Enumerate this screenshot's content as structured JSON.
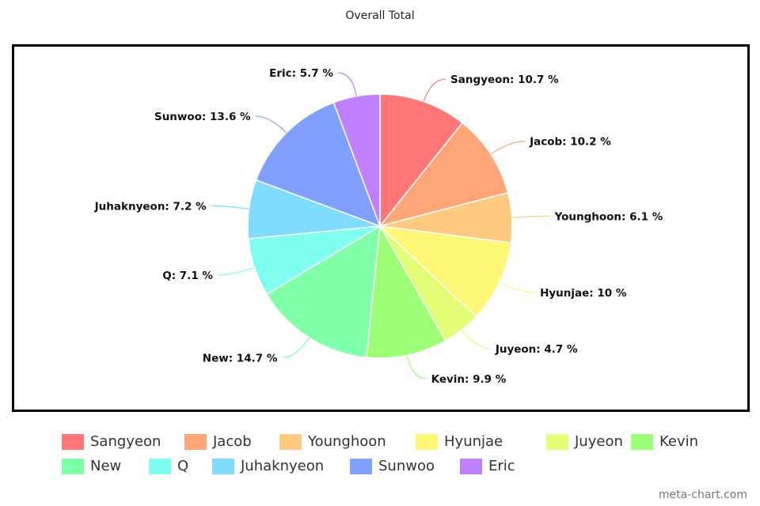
{
  "chart_data": {
    "type": "pie",
    "title": "Overall Total",
    "slices": [
      {
        "label": "Sangyeon",
        "value": 10.7,
        "color": "#ff7777"
      },
      {
        "label": "Jacob",
        "value": 10.2,
        "color": "#ffa577"
      },
      {
        "label": "Younghoon",
        "value": 6.1,
        "color": "#ffc980"
      },
      {
        "label": "Hyunjae",
        "value": 10,
        "color": "#fff877"
      },
      {
        "label": "Juyeon",
        "value": 4.7,
        "color": "#e2ff77"
      },
      {
        "label": "Kevin",
        "value": 9.9,
        "color": "#9dff77"
      },
      {
        "label": "New",
        "value": 14.7,
        "color": "#7fffa8"
      },
      {
        "label": "Q",
        "value": 7.1,
        "color": "#7ffff0"
      },
      {
        "label": "Juhaknyeon",
        "value": 7.2,
        "color": "#7fdcff"
      },
      {
        "label": "Sunwoo",
        "value": 13.6,
        "color": "#7fa0ff"
      },
      {
        "label": "Eric",
        "value": 5.7,
        "color": "#c07fff"
      }
    ],
    "unit": "%",
    "start": "top",
    "direction": "clockwise",
    "legend": "bottom"
  },
  "watermark": "meta-chart.com"
}
